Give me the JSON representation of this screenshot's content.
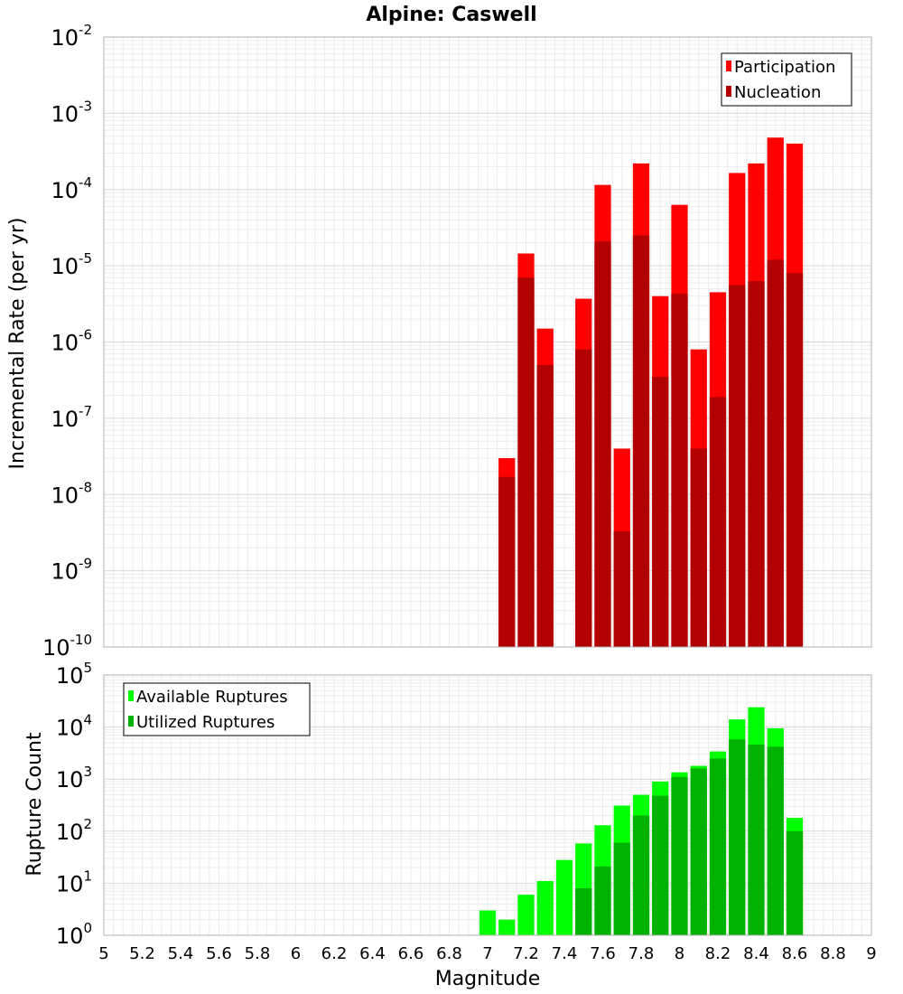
{
  "chart_data": [
    {
      "type": "bar",
      "title": "Alpine: Caswell",
      "xlabel": "",
      "ylabel": "Incremental Rate (per yr)",
      "yscale": "log",
      "xlim": [
        5,
        9
      ],
      "ylim_exponents": [
        -10,
        -2
      ],
      "y_tick_exponents": [
        -10,
        -9,
        -8,
        -7,
        -6,
        -5,
        -4,
        -3,
        -2
      ],
      "grid": true,
      "legend_position": "top-right",
      "x": [
        7.1,
        7.2,
        7.3,
        7.5,
        7.6,
        7.7,
        7.8,
        7.9,
        8.0,
        8.1,
        8.2,
        8.3,
        8.4,
        8.5,
        8.6
      ],
      "series": [
        {
          "name": "Participation",
          "color": "#ff0000",
          "values": [
            3e-08,
            1.45e-05,
            1.5e-06,
            3.7e-06,
            0.000115,
            4e-08,
            0.00022,
            4e-06,
            6.3e-05,
            8e-07,
            4.5e-06,
            0.000165,
            0.00022,
            0.00048,
            0.0004
          ]
        },
        {
          "name": "Nucleation",
          "color": "#b20000",
          "values": [
            1.7e-08,
            7e-06,
            5e-07,
            8e-07,
            2.1e-05,
            3.3e-09,
            2.5e-05,
            3.5e-07,
            4.3e-06,
            4e-08,
            1.9e-07,
            5.6e-06,
            6.3e-06,
            1.2e-05,
            8e-06
          ]
        }
      ]
    },
    {
      "type": "bar",
      "title": "",
      "xlabel": "Magnitude",
      "ylabel": "Rupture Count",
      "yscale": "log",
      "xlim": [
        5,
        9
      ],
      "ylim_exponents": [
        0,
        5
      ],
      "y_tick_exponents": [
        0,
        1,
        2,
        3,
        4,
        5
      ],
      "x_ticks": [
        "5",
        "5.2",
        "5.4",
        "5.6",
        "5.8",
        "6",
        "6.2",
        "6.4",
        "6.6",
        "6.8",
        "7",
        "7.2",
        "7.4",
        "7.6",
        "7.8",
        "8",
        "8.2",
        "8.4",
        "8.6",
        "8.8",
        "9"
      ],
      "grid": true,
      "legend_position": "top-left",
      "x": [
        6.9,
        7.0,
        7.1,
        7.2,
        7.3,
        7.4,
        7.5,
        7.6,
        7.7,
        7.8,
        7.9,
        8.0,
        8.1,
        8.2,
        8.3,
        8.4,
        8.5,
        8.6
      ],
      "series": [
        {
          "name": "Available Ruptures",
          "color": "#00ff00",
          "values": [
            1,
            3,
            2,
            6,
            11,
            28,
            58,
            130,
            310,
            500,
            900,
            1350,
            1800,
            3400,
            14000,
            24000,
            9500,
            180
          ]
        },
        {
          "name": "Utilized Ruptures",
          "color": "#00b200",
          "values": [
            0,
            0,
            1,
            1,
            1,
            0,
            8,
            21,
            60,
            200,
            480,
            1100,
            1600,
            2500,
            5800,
            4600,
            4200,
            100
          ]
        }
      ]
    }
  ]
}
